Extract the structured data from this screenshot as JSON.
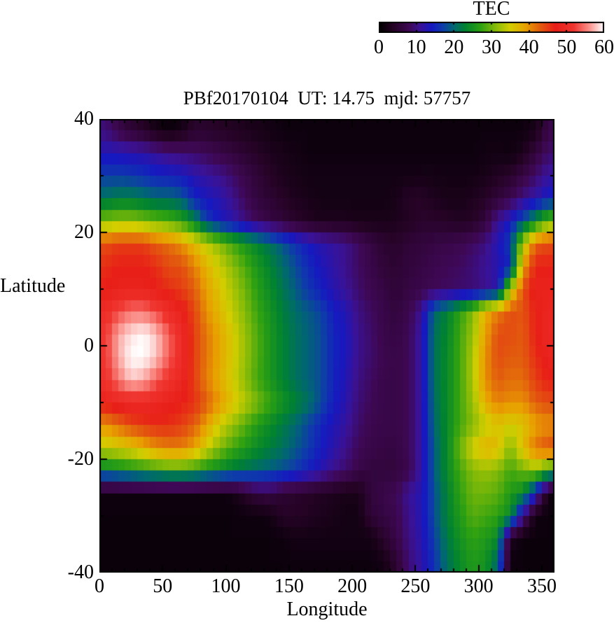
{
  "chart_data": {
    "type": "heatmap",
    "title": "PBf20170104  UT: 14.75  mjd: 57757",
    "xlabel": "Longitude",
    "ylabel": "Latitude",
    "xlim": [
      0,
      360
    ],
    "ylim": [
      -40,
      40
    ],
    "x_ticks": [
      0,
      50,
      100,
      150,
      200,
      250,
      300,
      350
    ],
    "y_ticks": [
      -40,
      -20,
      0,
      20,
      40
    ],
    "x_minor_step": 10,
    "y_minor_step": 10,
    "colorbar": {
      "label": "TEC",
      "min": 0,
      "max": 60,
      "tick_labels": [
        0,
        10,
        20,
        30,
        40,
        50,
        60
      ]
    },
    "colormap_stops": [
      [
        0,
        [
          0,
          0,
          0
        ]
      ],
      [
        4,
        [
          38,
          3,
          38
        ]
      ],
      [
        8,
        [
          62,
          8,
          84
        ]
      ],
      [
        11,
        [
          58,
          18,
          150
        ]
      ],
      [
        14,
        [
          22,
          24,
          192
        ]
      ],
      [
        17,
        [
          14,
          60,
          170
        ]
      ],
      [
        20,
        [
          0,
          104,
          112
        ]
      ],
      [
        23,
        [
          0,
          130,
          48
        ]
      ],
      [
        27,
        [
          44,
          160,
          18
        ]
      ],
      [
        31,
        [
          132,
          186,
          8
        ]
      ],
      [
        35,
        [
          212,
          206,
          0
        ]
      ],
      [
        39,
        [
          232,
          162,
          0
        ]
      ],
      [
        43,
        [
          226,
          92,
          14
        ]
      ],
      [
        47,
        [
          232,
          30,
          24
        ]
      ],
      [
        52,
        [
          240,
          54,
          48
        ]
      ],
      [
        56,
        [
          250,
          142,
          136
        ]
      ],
      [
        60,
        [
          255,
          255,
          255
        ]
      ]
    ],
    "x_centers": [
      5,
      15,
      25,
      35,
      45,
      55,
      65,
      75,
      85,
      95,
      105,
      115,
      125,
      135,
      145,
      155,
      165,
      175,
      185,
      195,
      205,
      215,
      225,
      235,
      245,
      255,
      265,
      275,
      285,
      295,
      305,
      315,
      325,
      335,
      345,
      355
    ],
    "y_centers": [
      38,
      34,
      30,
      26,
      22,
      18,
      14,
      10,
      6,
      2,
      -2,
      -6,
      -10,
      -14,
      -18,
      -22,
      -26,
      -30,
      -34,
      -38
    ],
    "values": [
      [
        9.5,
        7,
        5,
        4,
        2,
        1.2,
        2,
        4.5,
        4.5,
        4,
        3.5,
        3,
        2.5,
        2,
        1.5,
        1.5,
        1.5,
        1.5,
        1.5,
        1.5,
        1.5,
        1.5,
        1.5,
        1.5,
        1.5,
        1.5,
        1.5,
        1.5,
        1.5,
        1.5,
        1.5,
        1.5,
        1.5,
        1.5,
        2.5,
        7
      ],
      [
        13,
        13,
        12.5,
        12,
        11,
        10,
        9.5,
        9,
        8,
        7,
        6,
        5,
        4,
        3,
        2.5,
        2,
        1.5,
        1.5,
        1.5,
        1.5,
        1.5,
        1.5,
        1.5,
        1.5,
        1.5,
        1.5,
        1.5,
        1.5,
        1.5,
        1.5,
        1.8,
        2,
        1.5,
        3,
        6,
        9
      ],
      [
        17,
        17,
        16.5,
        16,
        15,
        14.5,
        14,
        12.5,
        11.5,
        10.5,
        9,
        7,
        5.5,
        4,
        3,
        2.5,
        2,
        2,
        2,
        2,
        2,
        2,
        2,
        2,
        2,
        2.2,
        2.2,
        2,
        2,
        2,
        2.5,
        3.5,
        4.5,
        6.5,
        9,
        11.5
      ],
      [
        21,
        22,
        22,
        21,
        20,
        20,
        19,
        15,
        13.5,
        12.5,
        10.5,
        8,
        6,
        5,
        4,
        3,
        2.5,
        2,
        2,
        2,
        2,
        2,
        2,
        2.5,
        4,
        4,
        3,
        2.5,
        2.5,
        3,
        4,
        5.5,
        7.5,
        10,
        12,
        14.5
      ],
      [
        31,
        32,
        32,
        31,
        30,
        29,
        27,
        23,
        17,
        14,
        12.5,
        10,
        8,
        6.5,
        5.5,
        4.5,
        3.5,
        3,
        3,
        3,
        2.5,
        2.5,
        2.5,
        3,
        3.5,
        4.5,
        4.5,
        4,
        3.5,
        4,
        6,
        11,
        14,
        18.5,
        24,
        30
      ],
      [
        44,
        45,
        45,
        45,
        43,
        42,
        40,
        37,
        34,
        31,
        28,
        25.5,
        23,
        21,
        18.5,
        16,
        14,
        12.5,
        11.5,
        10.5,
        8.5,
        6.5,
        5,
        4.5,
        5.5,
        6,
        6.5,
        7,
        7.5,
        8.5,
        10,
        13,
        17,
        33,
        43,
        44
      ],
      [
        46,
        47,
        47,
        47,
        46,
        44,
        44,
        41,
        37.5,
        34.5,
        31.5,
        28.5,
        25.5,
        23,
        20.5,
        18,
        15.5,
        13.5,
        12,
        10.5,
        8.5,
        7,
        5.5,
        5,
        6,
        6.5,
        7.5,
        8,
        8.5,
        9.5,
        11,
        12.5,
        15,
        39,
        47,
        47
      ],
      [
        47,
        48,
        48,
        48,
        47,
        46,
        45,
        43,
        39,
        36,
        33,
        30,
        26.5,
        24,
        21.5,
        19,
        16.5,
        14.5,
        12.5,
        11,
        9,
        7.5,
        6.5,
        5.5,
        6.5,
        7,
        8,
        8.5,
        9,
        9.5,
        10.5,
        12.5,
        33,
        44,
        48,
        48
      ],
      [
        50,
        53,
        55,
        55,
        53,
        50,
        48,
        44.5,
        40,
        37,
        34,
        31,
        27.5,
        25,
        22.5,
        20.5,
        19,
        17.5,
        14.5,
        13,
        10,
        8.5,
        7,
        6,
        7.5,
        11,
        20,
        23,
        27,
        31,
        38,
        41,
        44,
        43.5,
        47,
        48.5
      ],
      [
        52,
        57,
        59,
        60,
        58,
        54,
        50,
        45,
        41.5,
        38.5,
        35.5,
        32,
        28.5,
        25.5,
        23,
        21,
        19.5,
        18,
        15,
        13.5,
        10.5,
        9,
        7,
        6.5,
        8,
        12,
        21,
        23.5,
        28,
        32,
        39,
        44,
        44,
        43,
        47,
        49
      ],
      [
        52,
        57,
        60,
        60,
        58,
        54,
        50,
        45,
        41.5,
        38.5,
        35.5,
        32,
        28.5,
        25.5,
        23,
        21,
        19.5,
        18,
        15,
        13.5,
        10.5,
        9,
        7.5,
        7,
        8,
        12,
        21,
        24,
        28,
        33,
        40,
        44,
        43,
        43,
        46,
        48
      ],
      [
        51,
        55,
        58,
        57,
        54,
        51,
        49,
        45,
        41,
        38,
        35,
        31.5,
        28,
        25.5,
        23,
        21,
        19.5,
        18,
        15,
        13,
        10,
        8.5,
        7,
        7,
        8,
        12,
        21,
        24,
        28,
        33,
        40,
        43,
        42,
        42,
        45,
        47
      ],
      [
        48,
        49,
        50,
        50,
        49,
        48,
        47,
        46,
        43,
        39.5,
        36.5,
        33.5,
        30.5,
        27.5,
        25,
        23,
        21,
        18,
        14.5,
        12.5,
        9.5,
        8,
        7,
        7,
        8,
        12,
        20.5,
        24,
        28,
        32,
        38,
        41,
        40,
        40,
        43,
        44
      ],
      [
        40,
        42,
        44,
        45,
        46,
        46,
        45,
        43,
        39,
        35,
        32,
        29,
        26,
        24,
        22,
        20,
        17.5,
        15,
        13,
        11.5,
        9,
        7.5,
        7,
        7,
        8,
        12,
        20,
        24,
        28,
        31,
        34,
        36,
        35,
        36,
        39,
        40
      ],
      [
        34,
        35,
        36,
        38,
        40,
        41,
        41,
        39,
        35,
        31,
        28,
        26,
        24,
        22.5,
        21,
        19,
        17,
        14.5,
        12.5,
        10.5,
        8,
        7,
        6.5,
        6.5,
        8,
        12,
        19,
        24,
        30,
        35,
        38,
        37,
        31,
        37,
        42,
        44
      ],
      [
        23,
        24,
        25,
        26,
        27,
        28,
        28,
        27,
        25,
        23.5,
        22,
        21,
        20,
        19,
        18,
        16.5,
        14.5,
        12.5,
        10.5,
        9,
        7,
        6,
        6,
        6,
        7.5,
        12,
        19,
        24,
        28,
        31,
        32,
        31,
        28,
        30,
        32,
        27
      ],
      [
        1.5,
        1.5,
        1.5,
        1.5,
        1.5,
        1.5,
        1.5,
        1.5,
        1.5,
        1.5,
        2,
        4,
        6,
        6.5,
        5,
        4.5,
        4,
        3.5,
        3,
        2.5,
        2.5,
        6,
        7,
        8,
        11,
        13,
        18,
        23,
        27,
        30,
        30,
        29,
        26,
        24,
        14,
        1.5
      ],
      [
        1.2,
        1.2,
        1.2,
        1.2,
        1.2,
        1.2,
        1.2,
        1.2,
        1.2,
        1.2,
        1.2,
        1.5,
        1.5,
        2,
        4,
        4,
        3.5,
        3,
        2.5,
        2,
        2,
        5.5,
        6.5,
        7.5,
        10.5,
        13,
        18,
        23,
        26,
        29,
        28,
        27,
        24,
        10,
        1.5,
        1.2
      ],
      [
        1.2,
        1.2,
        1.2,
        1.2,
        1.2,
        1.2,
        1.2,
        1.2,
        1.2,
        1.2,
        1.2,
        1.2,
        1.2,
        1.2,
        1.5,
        2,
        2,
        2,
        2,
        2,
        2,
        2,
        4.5,
        7,
        10,
        12.5,
        17,
        22,
        25,
        27,
        26,
        24,
        3,
        1.2,
        1.2,
        1.2
      ],
      [
        1.2,
        1.2,
        1.2,
        1.2,
        1.2,
        1.2,
        1.2,
        1.2,
        1.2,
        1.2,
        1.2,
        1.2,
        1.2,
        1.2,
        1.2,
        1.5,
        1.5,
        1.5,
        1.5,
        1.5,
        1.5,
        1.5,
        2,
        5,
        9.5,
        12,
        16,
        21,
        24,
        26,
        25,
        20,
        1.5,
        1.2,
        1.2,
        1.2
      ]
    ]
  }
}
